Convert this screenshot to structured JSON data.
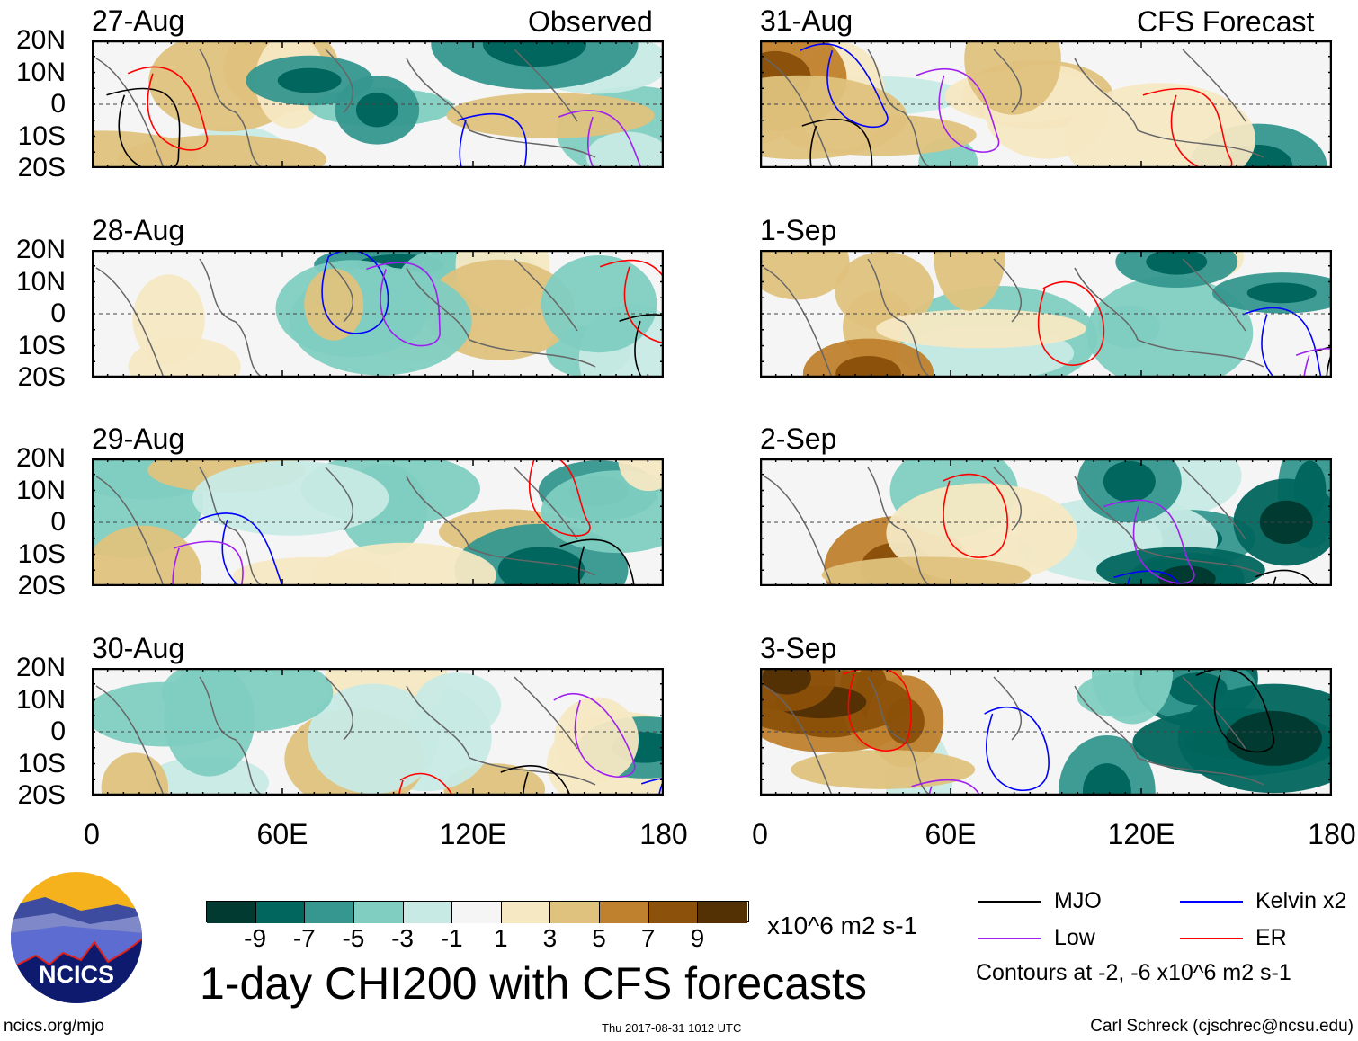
{
  "chart_data": {
    "type": "heatmap",
    "title": "1-day CHI200 with CFS forecasts",
    "units": "x10^6 m2 s-1",
    "columns": [
      {
        "label": "Observed",
        "panels": [
          "27-Aug",
          "28-Aug",
          "29-Aug",
          "30-Aug"
        ]
      },
      {
        "label": "CFS Forecast",
        "panels": [
          "31-Aug",
          "1-Sep",
          "2-Sep",
          "3-Sep"
        ]
      }
    ],
    "lat_ticks": [
      "20N",
      "10N",
      "0",
      "10S",
      "20S"
    ],
    "lon_ticks": [
      "0",
      "60E",
      "120E",
      "180"
    ],
    "lat_range": [
      -20,
      20
    ],
    "lon_range": [
      0,
      180
    ],
    "colorbar": {
      "levels": [
        "-9",
        "-7",
        "-5",
        "-3",
        "-1",
        "1",
        "3",
        "5",
        "7",
        "9"
      ],
      "colors": [
        "#003a30",
        "#01665e",
        "#35978f",
        "#80cdc1",
        "#c7eae5",
        "#f5f5f5",
        "#f6e8c3",
        "#dfc27d",
        "#bf812d",
        "#8c510a",
        "#543005"
      ]
    },
    "legend": [
      {
        "label": "MJO",
        "color": "#000000"
      },
      {
        "label": "Kelvin x2",
        "color": "#0000ff"
      },
      {
        "label": "Low",
        "color": "#a020f0"
      },
      {
        "label": "ER",
        "color": "#ff0000"
      }
    ],
    "contour_note": "Contours at -2, -6 x10^6 m2 s-1"
  },
  "footer": {
    "logo_text": "NCICS",
    "site": "ncics.org/mjo",
    "timestamp": "Thu 2017-08-31 1012 UTC",
    "author": "Carl Schreck (cjschrec@ncsu.edu)"
  }
}
